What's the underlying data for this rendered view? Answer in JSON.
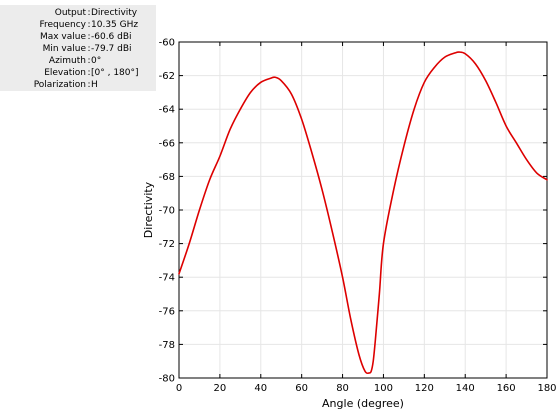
{
  "info_panel": {
    "rows": [
      {
        "key": "Output",
        "value": "Directivity"
      },
      {
        "key": "Frequency",
        "value": "10.35 GHz"
      },
      {
        "key": "Max value",
        "value": "-60.6 dBi"
      },
      {
        "key": "Min value",
        "value": "-79.7 dBi"
      },
      {
        "key": "Azimuth",
        "value": "0°"
      },
      {
        "key": "Elevation",
        "value": "[0° , 180°]"
      },
      {
        "key": "Polarization",
        "value": "H"
      }
    ],
    "background_color": "#ececec"
  },
  "chart_data": {
    "type": "line",
    "title": "",
    "xlabel": "Angle (degree)",
    "ylabel": "Directivity",
    "xlim": [
      0,
      180
    ],
    "ylim": [
      -80,
      -60
    ],
    "xticks": [
      0,
      20,
      40,
      60,
      80,
      100,
      120,
      140,
      160,
      180
    ],
    "yticks": [
      -60,
      -62,
      -64,
      -66,
      -68,
      -70,
      -72,
      -74,
      -76,
      -78,
      -80
    ],
    "grid": true,
    "line_color": "#dd0000",
    "series": [
      {
        "x": [
          0,
          5,
          10,
          15,
          20,
          25,
          30,
          35,
          40,
          45,
          47,
          50,
          55,
          60,
          65,
          70,
          75,
          80,
          84,
          88,
          91,
          93,
          94,
          95,
          96,
          98,
          100,
          105,
          110,
          115,
          120,
          125,
          130,
          135,
          137,
          140,
          145,
          150,
          155,
          160,
          165,
          170,
          175,
          180
        ],
        "y": [
          -73.8,
          -72.0,
          -70.0,
          -68.2,
          -66.8,
          -65.2,
          -64.0,
          -63.0,
          -62.4,
          -62.15,
          -62.1,
          -62.3,
          -63.1,
          -64.6,
          -66.6,
          -68.8,
          -71.3,
          -74.0,
          -76.5,
          -78.6,
          -79.6,
          -79.7,
          -79.6,
          -79.0,
          -77.8,
          -75.0,
          -72.0,
          -68.8,
          -66.2,
          -64.0,
          -62.4,
          -61.5,
          -60.9,
          -60.65,
          -60.6,
          -60.7,
          -61.3,
          -62.3,
          -63.6,
          -65.0,
          -66.0,
          -67.0,
          -67.8,
          -68.2
        ]
      }
    ]
  }
}
